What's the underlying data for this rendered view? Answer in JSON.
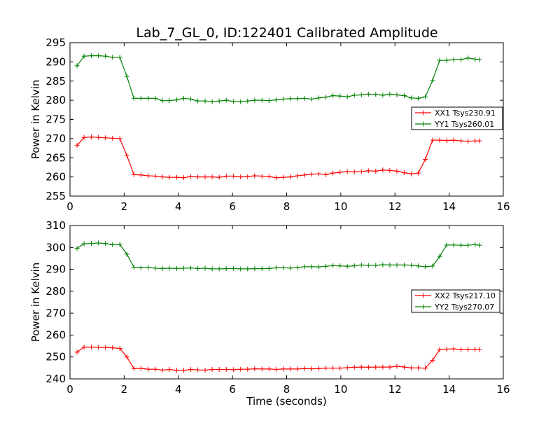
{
  "title": "Lab_7_GL_0, ID:122401 Calibrated Amplitude",
  "chart_data": [
    {
      "type": "line",
      "ylabel": "Power in Kelvin",
      "xlabel": "",
      "xlim": [
        0,
        16
      ],
      "ylim": [
        255,
        295
      ],
      "xticks": [
        0,
        2,
        4,
        6,
        8,
        10,
        12,
        14,
        16
      ],
      "yticks": [
        255,
        260,
        265,
        270,
        275,
        280,
        285,
        290,
        295
      ],
      "legend_position": "center-right",
      "series": [
        {
          "name": "XX1 Tsys230.91",
          "color": "#ff0000",
          "x": [
            0.26,
            0.52,
            0.79,
            1.05,
            1.31,
            1.57,
            1.84,
            2.1,
            2.36,
            2.62,
            2.89,
            3.15,
            3.41,
            3.67,
            3.94,
            4.2,
            4.46,
            4.72,
            4.99,
            5.25,
            5.51,
            5.77,
            6.04,
            6.3,
            6.56,
            6.82,
            7.09,
            7.35,
            7.61,
            7.87,
            8.14,
            8.4,
            8.66,
            8.92,
            9.19,
            9.45,
            9.71,
            9.97,
            10.24,
            10.5,
            10.76,
            11.02,
            11.29,
            11.55,
            11.81,
            12.07,
            12.34,
            12.6,
            12.86,
            13.12,
            13.39,
            13.65,
            13.91,
            14.17,
            14.44,
            14.7,
            14.96,
            15.12
          ],
          "y": [
            268.2,
            270.3,
            270.4,
            270.3,
            270.2,
            270.1,
            270.0,
            265.6,
            260.6,
            260.5,
            260.3,
            260.2,
            260.0,
            259.9,
            259.9,
            259.8,
            260.1,
            260.0,
            260.0,
            260.0,
            259.9,
            260.2,
            260.2,
            260.0,
            260.1,
            260.3,
            260.2,
            260.1,
            259.8,
            259.9,
            260.0,
            260.3,
            260.5,
            260.7,
            260.8,
            260.6,
            261.0,
            261.2,
            261.4,
            261.3,
            261.4,
            261.6,
            261.5,
            261.8,
            261.7,
            261.5,
            261.1,
            260.8,
            261.0,
            264.6,
            269.6,
            269.6,
            269.5,
            269.6,
            269.4,
            269.3,
            269.4,
            269.4
          ]
        },
        {
          "name": "YY1 Tsys260.01",
          "color": "#008000",
          "x": [
            0.26,
            0.52,
            0.79,
            1.05,
            1.31,
            1.57,
            1.84,
            2.1,
            2.36,
            2.62,
            2.89,
            3.15,
            3.41,
            3.67,
            3.94,
            4.2,
            4.46,
            4.72,
            4.99,
            5.25,
            5.51,
            5.77,
            6.04,
            6.3,
            6.56,
            6.82,
            7.09,
            7.35,
            7.61,
            7.87,
            8.14,
            8.4,
            8.66,
            8.92,
            9.19,
            9.45,
            9.71,
            9.97,
            10.24,
            10.5,
            10.76,
            11.02,
            11.29,
            11.55,
            11.81,
            12.07,
            12.34,
            12.6,
            12.86,
            13.12,
            13.39,
            13.65,
            13.91,
            14.17,
            14.44,
            14.7,
            14.96,
            15.12
          ],
          "y": [
            289.0,
            291.5,
            291.6,
            291.6,
            291.5,
            291.2,
            291.2,
            286.2,
            280.5,
            280.5,
            280.5,
            280.5,
            279.9,
            279.9,
            280.1,
            280.5,
            280.3,
            279.8,
            279.8,
            279.6,
            279.8,
            280.0,
            279.7,
            279.6,
            279.8,
            280.0,
            280.0,
            279.9,
            280.1,
            280.3,
            280.4,
            280.4,
            280.5,
            280.3,
            280.6,
            280.8,
            281.2,
            281.1,
            280.9,
            281.3,
            281.4,
            281.6,
            281.5,
            281.3,
            281.6,
            281.4,
            281.2,
            280.6,
            280.5,
            280.9,
            285.2,
            290.4,
            290.4,
            290.6,
            290.6,
            291.0,
            290.7,
            290.6
          ]
        }
      ]
    },
    {
      "type": "line",
      "ylabel": "Power in Kelvin",
      "xlabel": "Time (seconds)",
      "xlim": [
        0,
        16
      ],
      "ylim": [
        240,
        310
      ],
      "xticks": [
        0,
        2,
        4,
        6,
        8,
        10,
        12,
        14,
        16
      ],
      "yticks": [
        240,
        250,
        260,
        270,
        280,
        290,
        300,
        310
      ],
      "legend_position": "center-right",
      "series": [
        {
          "name": "XX2 Tsys217.10",
          "color": "#ff0000",
          "x": [
            0.26,
            0.52,
            0.79,
            1.05,
            1.31,
            1.57,
            1.84,
            2.1,
            2.36,
            2.62,
            2.89,
            3.15,
            3.41,
            3.67,
            3.94,
            4.2,
            4.46,
            4.72,
            4.99,
            5.25,
            5.51,
            5.77,
            6.04,
            6.3,
            6.56,
            6.82,
            7.09,
            7.35,
            7.61,
            7.87,
            8.14,
            8.4,
            8.66,
            8.92,
            9.19,
            9.45,
            9.71,
            9.97,
            10.24,
            10.5,
            10.76,
            11.02,
            11.29,
            11.55,
            11.81,
            12.07,
            12.34,
            12.6,
            12.86,
            13.12,
            13.39,
            13.65,
            13.91,
            14.17,
            14.44,
            14.7,
            14.96,
            15.12
          ],
          "y": [
            252.2,
            254.5,
            254.5,
            254.4,
            254.3,
            254.2,
            253.9,
            250.0,
            244.7,
            244.8,
            244.4,
            244.4,
            244.0,
            244.3,
            243.9,
            243.9,
            244.3,
            244.1,
            244.0,
            244.3,
            244.3,
            244.3,
            244.2,
            244.4,
            244.4,
            244.6,
            244.5,
            244.5,
            244.3,
            244.5,
            244.5,
            244.5,
            244.7,
            244.6,
            244.7,
            244.9,
            244.9,
            244.9,
            245.1,
            245.3,
            245.4,
            245.3,
            245.4,
            245.4,
            245.4,
            245.8,
            245.4,
            245.0,
            245.0,
            244.9,
            248.5,
            253.4,
            253.6,
            253.7,
            253.4,
            253.4,
            253.5,
            253.4
          ]
        },
        {
          "name": "YY2 Tsys270.07",
          "color": "#008000",
          "x": [
            0.26,
            0.52,
            0.79,
            1.05,
            1.31,
            1.57,
            1.84,
            2.1,
            2.36,
            2.62,
            2.89,
            3.15,
            3.41,
            3.67,
            3.94,
            4.2,
            4.46,
            4.72,
            4.99,
            5.25,
            5.51,
            5.77,
            6.04,
            6.3,
            6.56,
            6.82,
            7.09,
            7.35,
            7.61,
            7.87,
            8.14,
            8.4,
            8.66,
            8.92,
            9.19,
            9.45,
            9.71,
            9.97,
            10.24,
            10.5,
            10.76,
            11.02,
            11.29,
            11.55,
            11.81,
            12.07,
            12.34,
            12.6,
            12.86,
            13.12,
            13.39,
            13.65,
            13.91,
            14.17,
            14.44,
            14.7,
            14.96,
            15.12
          ],
          "y": [
            299.6,
            301.7,
            301.8,
            302.0,
            301.8,
            301.2,
            301.4,
            296.9,
            291.0,
            290.7,
            290.9,
            290.5,
            290.4,
            290.5,
            290.4,
            290.5,
            290.6,
            290.4,
            290.5,
            290.2,
            290.2,
            290.3,
            290.4,
            290.2,
            290.2,
            290.3,
            290.3,
            290.4,
            290.7,
            290.7,
            290.6,
            290.8,
            291.2,
            291.2,
            291.1,
            291.4,
            291.7,
            291.6,
            291.4,
            291.6,
            292.0,
            291.8,
            291.8,
            292.1,
            292.0,
            292.0,
            292.0,
            291.9,
            291.5,
            291.2,
            291.5,
            295.9,
            301.1,
            301.1,
            301.0,
            301.0,
            301.3,
            301.0
          ]
        }
      ]
    }
  ]
}
